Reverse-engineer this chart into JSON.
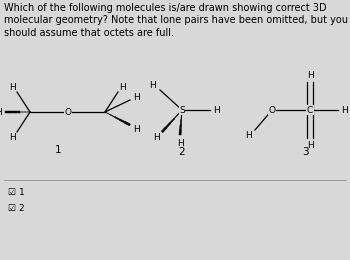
{
  "title_text": "Which of the following molecules is/are drawn showing correct 3D\nmolecular geometry? Note that lone pairs have been omitted, but you\nshould assume that octets are full.",
  "title_fontsize": 7.0,
  "bg_color": "#d8d8d8",
  "mol1_label": "1",
  "mol2_label": "2",
  "mol3_label": "3",
  "checkbox1": "☑ 1",
  "checkbox2": "☑ 2"
}
